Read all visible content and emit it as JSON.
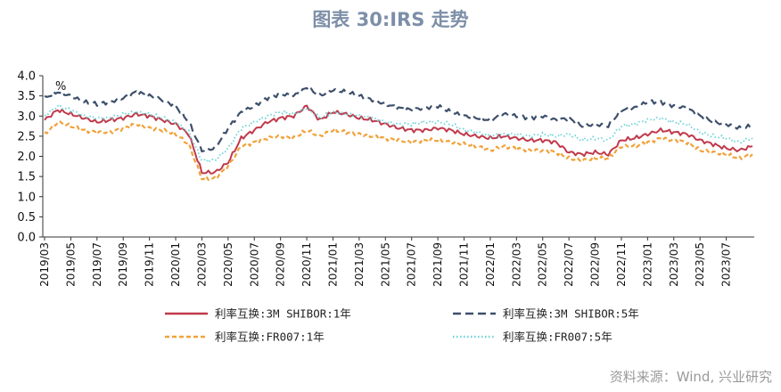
{
  "title": "图表 30:IRS 走势",
  "source": "资料来源：Wind, 兴业研究",
  "chart_data": {
    "type": "line",
    "unit": "%",
    "ylim": [
      0,
      4
    ],
    "y_ticks": [
      "0.0",
      "0.5",
      "1.0",
      "1.5",
      "2.0",
      "2.5",
      "3.0",
      "3.5",
      "4.0"
    ],
    "x_ticks": [
      "2019/03",
      "2019/05",
      "2019/07",
      "2019/09",
      "2019/11",
      "2020/01",
      "2020/03",
      "2020/05",
      "2020/07",
      "2020/09",
      "2020/11",
      "2021/01",
      "2021/03",
      "2021/05",
      "2021/07",
      "2021/09",
      "2021/11",
      "2022/01",
      "2022/03",
      "2022/05",
      "2022/07",
      "2022/09",
      "2022/11",
      "2023/01",
      "2023/03",
      "2023/05",
      "2023/07"
    ],
    "grid": false,
    "legend_position": "bottom",
    "x": [
      "2019/03",
      "2019/04",
      "2019/05",
      "2019/06",
      "2019/07",
      "2019/08",
      "2019/09",
      "2019/10",
      "2019/11",
      "2019/12",
      "2020/01",
      "2020/02",
      "2020/03",
      "2020/04",
      "2020/05",
      "2020/06",
      "2020/07",
      "2020/08",
      "2020/09",
      "2020/10",
      "2020/11",
      "2020/12",
      "2021/01",
      "2021/02",
      "2021/03",
      "2021/04",
      "2021/05",
      "2021/06",
      "2021/07",
      "2021/08",
      "2021/09",
      "2021/10",
      "2021/11",
      "2021/12",
      "2022/01",
      "2022/02",
      "2022/03",
      "2022/04",
      "2022/05",
      "2022/06",
      "2022/07",
      "2022/08",
      "2022/09",
      "2022/10",
      "2022/11",
      "2022/12",
      "2023/01",
      "2023/02",
      "2023/03",
      "2023/04",
      "2023/05",
      "2023/06",
      "2023/07",
      "2023/08",
      "2023/09"
    ],
    "series": [
      {
        "name": "利率互换:3M SHIBOR:1年",
        "color": "#c0394b",
        "dash": "solid",
        "values": [
          2.9,
          3.15,
          3.05,
          2.95,
          2.85,
          2.9,
          2.95,
          3.05,
          3.0,
          2.9,
          2.8,
          2.55,
          1.6,
          1.6,
          1.85,
          2.45,
          2.65,
          2.85,
          2.95,
          3.0,
          3.25,
          2.9,
          3.1,
          3.05,
          2.95,
          2.9,
          2.8,
          2.7,
          2.65,
          2.65,
          2.7,
          2.65,
          2.55,
          2.5,
          2.45,
          2.5,
          2.45,
          2.4,
          2.4,
          2.35,
          2.1,
          2.05,
          2.1,
          2.05,
          2.4,
          2.45,
          2.55,
          2.65,
          2.6,
          2.55,
          2.4,
          2.3,
          2.2,
          2.15,
          2.25
        ]
      },
      {
        "name": "利率互换:3M SHIBOR:5年",
        "color": "#3d4f6b",
        "dash": "long",
        "values": [
          3.45,
          3.6,
          3.5,
          3.35,
          3.3,
          3.35,
          3.45,
          3.6,
          3.5,
          3.4,
          3.25,
          2.85,
          2.15,
          2.2,
          2.7,
          3.1,
          3.25,
          3.45,
          3.55,
          3.5,
          3.7,
          3.5,
          3.65,
          3.6,
          3.5,
          3.4,
          3.3,
          3.2,
          3.15,
          3.2,
          3.25,
          3.1,
          3.0,
          2.95,
          2.9,
          3.05,
          3.0,
          2.95,
          3.0,
          2.9,
          2.95,
          2.75,
          2.8,
          2.75,
          3.15,
          3.2,
          3.35,
          3.35,
          3.25,
          3.2,
          3.0,
          2.85,
          2.8,
          2.7,
          2.75
        ]
      },
      {
        "name": "利率互换:FR007:1年",
        "color": "#f0a23a",
        "dash": "short",
        "values": [
          2.55,
          2.85,
          2.75,
          2.65,
          2.6,
          2.6,
          2.7,
          2.8,
          2.7,
          2.65,
          2.55,
          2.3,
          1.45,
          1.45,
          1.75,
          2.25,
          2.35,
          2.45,
          2.5,
          2.45,
          2.65,
          2.5,
          2.65,
          2.6,
          2.55,
          2.5,
          2.45,
          2.4,
          2.35,
          2.4,
          2.4,
          2.35,
          2.3,
          2.25,
          2.15,
          2.25,
          2.2,
          2.15,
          2.15,
          2.1,
          1.95,
          1.9,
          1.95,
          1.95,
          2.25,
          2.25,
          2.35,
          2.45,
          2.4,
          2.35,
          2.15,
          2.1,
          2.05,
          1.95,
          2.05
        ]
      },
      {
        "name": "利率互换:FR007:5年",
        "color": "#6ed3d8",
        "dash": "dotted",
        "values": [
          3.0,
          3.25,
          3.15,
          3.0,
          2.95,
          2.95,
          3.05,
          3.1,
          3.05,
          2.95,
          2.85,
          2.6,
          1.9,
          1.9,
          2.2,
          2.7,
          2.85,
          3.0,
          3.1,
          3.05,
          3.2,
          2.95,
          3.1,
          3.05,
          3.0,
          2.95,
          2.85,
          2.8,
          2.8,
          2.85,
          2.85,
          2.8,
          2.65,
          2.6,
          2.5,
          2.55,
          2.55,
          2.5,
          2.55,
          2.5,
          2.55,
          2.4,
          2.45,
          2.4,
          2.75,
          2.8,
          2.9,
          2.95,
          2.85,
          2.8,
          2.6,
          2.5,
          2.45,
          2.35,
          2.45
        ]
      }
    ]
  }
}
